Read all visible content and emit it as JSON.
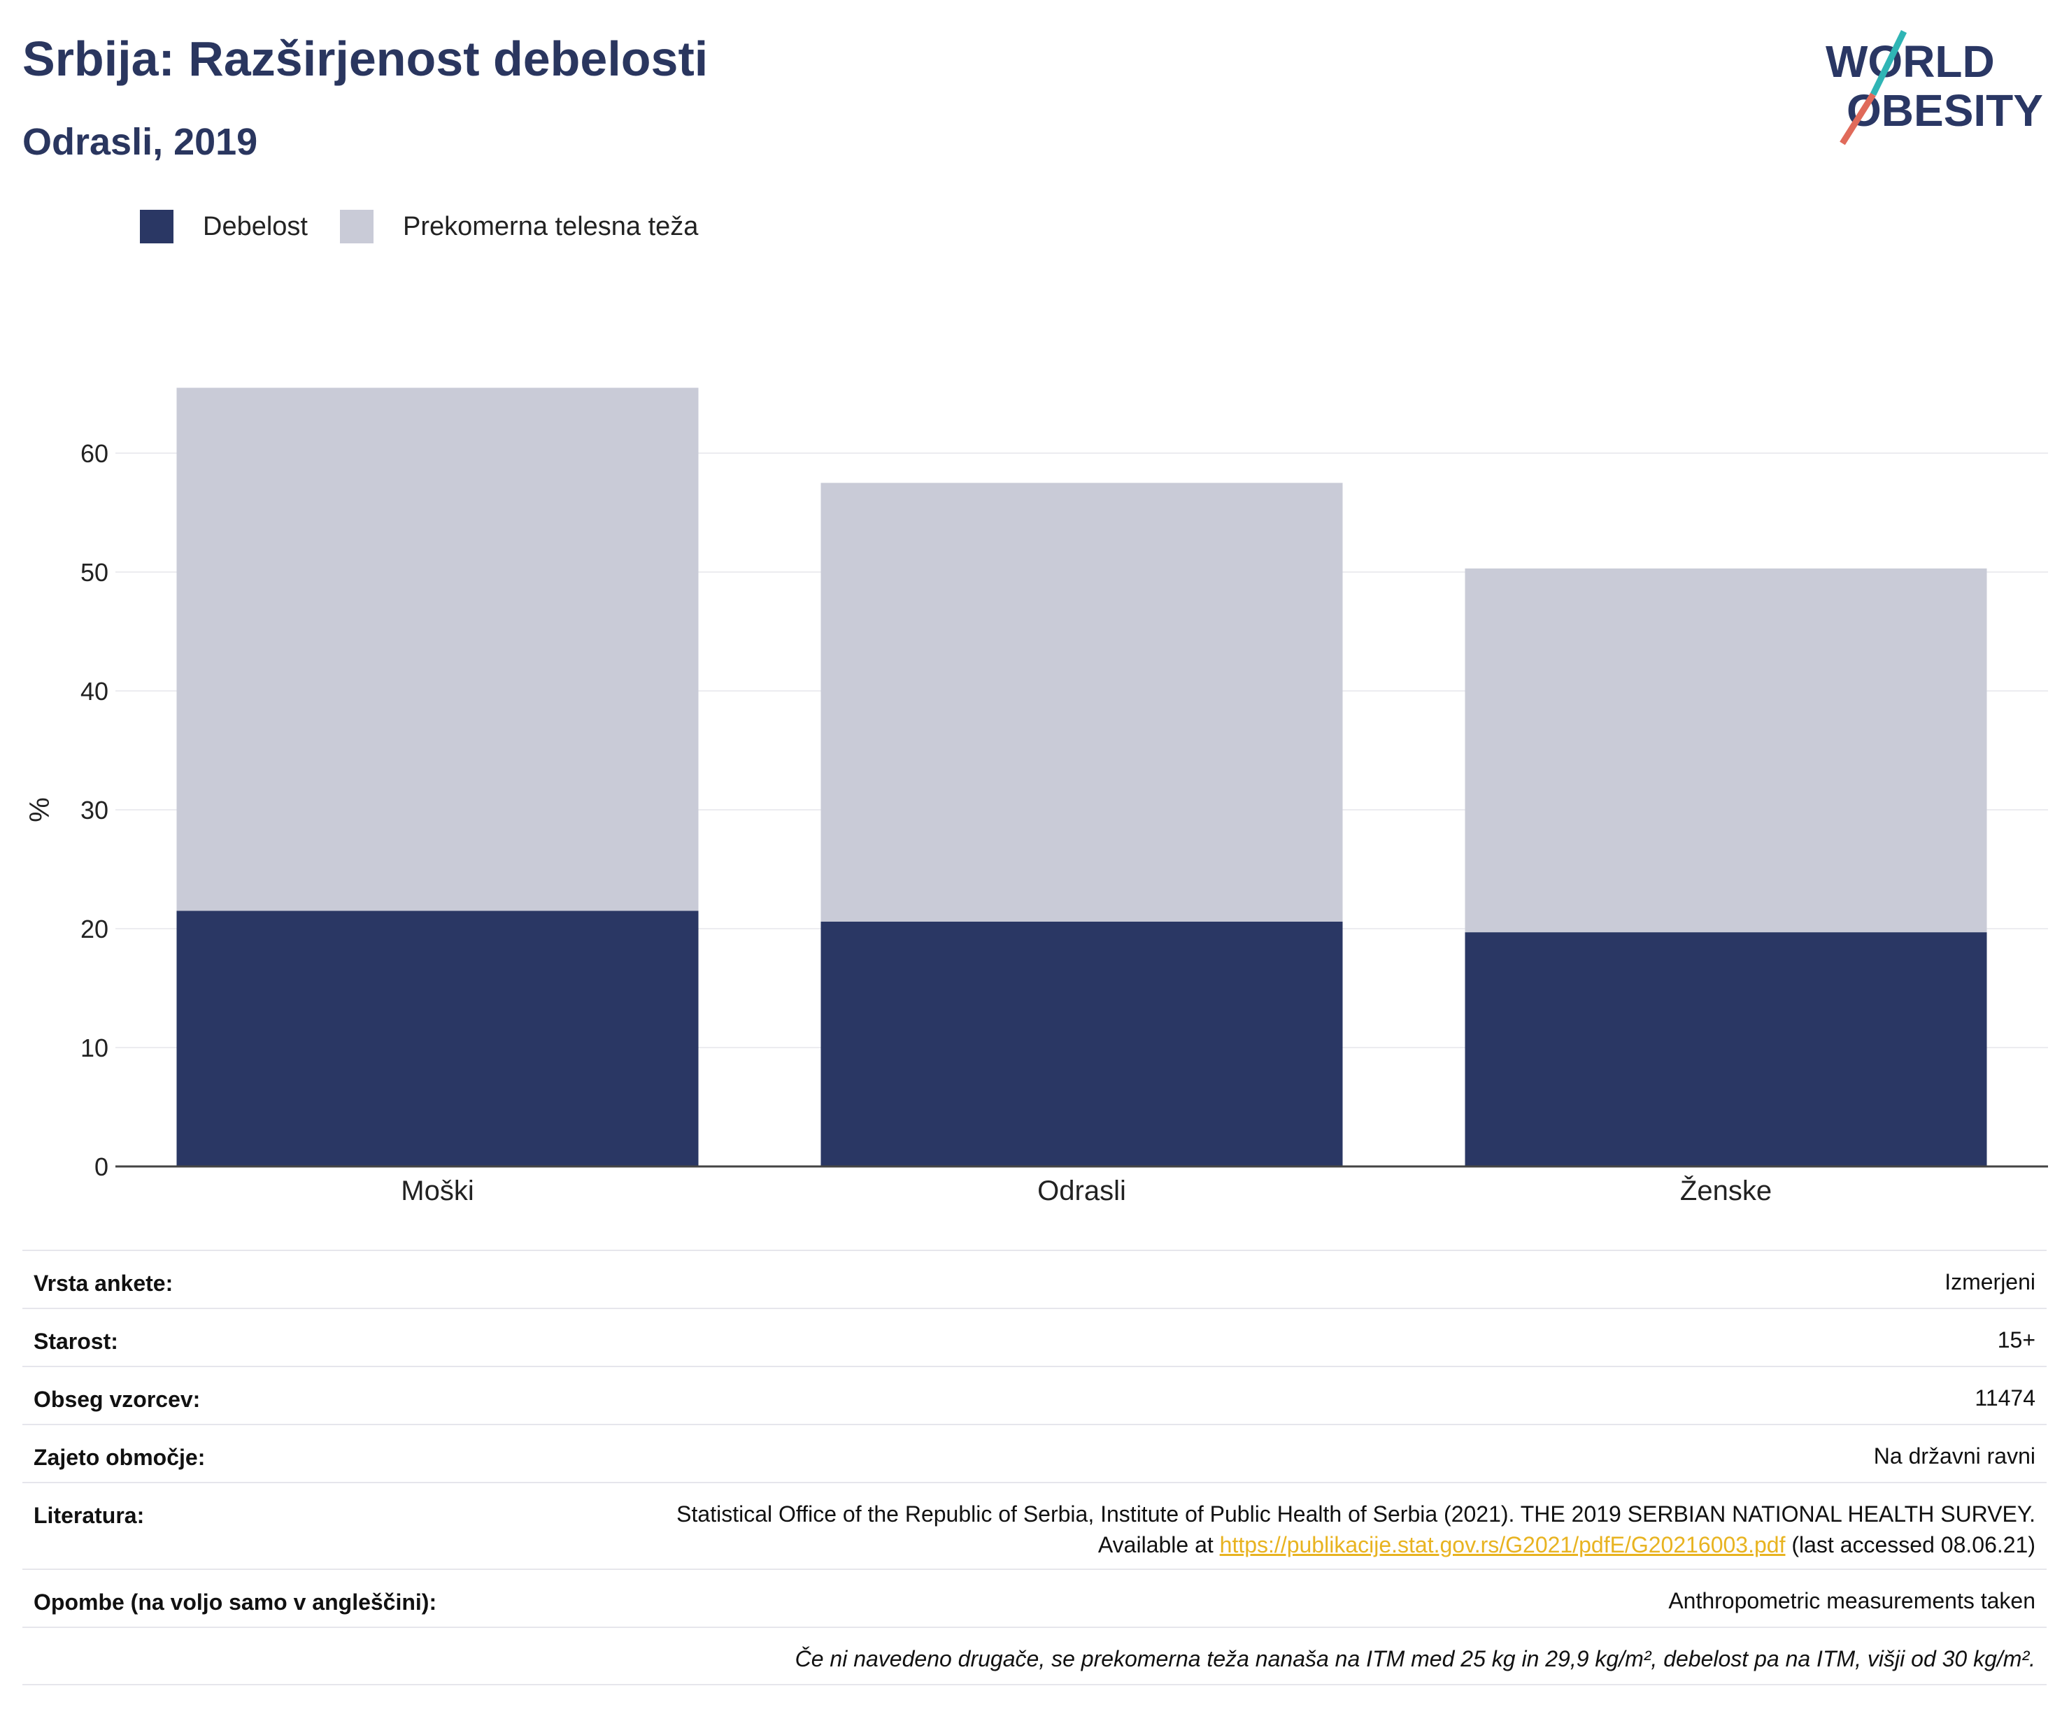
{
  "header": {
    "title": "Srbija: Razširjenost debelosti",
    "subtitle": "Odrasli, 2019"
  },
  "logo": {
    "line1": "WORLD",
    "line2": "OBESITY"
  },
  "legend": [
    {
      "label": "Debelost",
      "color": "#2a3764"
    },
    {
      "label": "Prekomerna telesna teža",
      "color": "#c9cbd7"
    }
  ],
  "chart_data": {
    "type": "bar",
    "stacked": true,
    "categories": [
      "Moški",
      "Odrasli",
      "Ženske"
    ],
    "series": [
      {
        "name": "Debelost",
        "values": [
          21.5,
          20.6,
          19.7
        ],
        "color": "#2a3764"
      },
      {
        "name": "Prekomerna telesna teža",
        "values": [
          44.0,
          36.9,
          30.6
        ],
        "color": "#c9cbd7"
      }
    ],
    "xlabel": "",
    "ylabel": "%",
    "yticks": [
      0,
      10,
      20,
      30,
      40,
      50,
      60
    ],
    "ylim": [
      0,
      70
    ],
    "grid": true,
    "legend_position": "top-left"
  },
  "info": {
    "rows": [
      {
        "key": "Vrsta ankete:",
        "value": "Izmerjeni"
      },
      {
        "key": "Starost:",
        "value": "15+"
      },
      {
        "key": "Obseg vzorcev:",
        "value": "11474"
      },
      {
        "key": "Zajeto območje:",
        "value": "Na državni ravni"
      }
    ],
    "literature": {
      "key": "Literatura:",
      "text_before": "Statistical Office of the Republic of Serbia, Institute of Public Health of Serbia (2021). THE 2019 SERBIAN NATIONAL HEALTH SURVEY. Available at ",
      "link": "https://publikacije.stat.gov.rs/G2021/pdfE/G20216003.pdf",
      "text_after": " (last accessed 08.06.21)"
    },
    "notes": {
      "key": "Opombe (na voljo samo v angleščini):",
      "value": "Anthropometric measurements taken"
    },
    "footnote": "Če ni navedeno drugače, se prekomerna teža nanaša na ITM med 25 kg in 29,9 kg/m², debelost pa na ITM, višji od 30 kg/m²."
  }
}
